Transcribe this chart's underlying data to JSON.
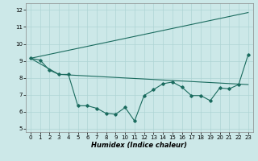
{
  "xlabel": "Humidex (Indice chaleur)",
  "xlim": [
    -0.5,
    23.5
  ],
  "ylim": [
    4.8,
    12.4
  ],
  "yticks": [
    5,
    6,
    7,
    8,
    9,
    10,
    11,
    12
  ],
  "xticks": [
    0,
    1,
    2,
    3,
    4,
    5,
    6,
    7,
    8,
    9,
    10,
    11,
    12,
    13,
    14,
    15,
    16,
    17,
    18,
    19,
    20,
    21,
    22,
    23
  ],
  "bg_color": "#cce8e8",
  "line_color": "#1a6b5e",
  "line1_x": [
    0,
    1,
    2,
    3,
    4,
    5,
    6,
    7,
    8,
    9,
    10,
    11,
    12,
    13,
    14,
    15,
    16,
    17,
    18,
    19,
    20,
    21,
    22,
    23
  ],
  "line1_y": [
    9.15,
    9.05,
    8.45,
    8.2,
    8.2,
    6.35,
    6.35,
    6.2,
    5.9,
    5.85,
    6.25,
    5.45,
    6.95,
    7.3,
    7.65,
    7.75,
    7.45,
    6.95,
    6.95,
    6.65,
    7.4,
    7.35,
    7.6,
    9.35
  ],
  "line2_x": [
    0,
    23
  ],
  "line2_y": [
    9.15,
    11.85
  ],
  "line3_x": [
    0,
    3,
    23
  ],
  "line3_y": [
    9.15,
    8.2,
    7.6
  ],
  "grid_color": "#aed4d4",
  "xlabel_fontsize": 6.0,
  "tick_fontsize": 5.0
}
